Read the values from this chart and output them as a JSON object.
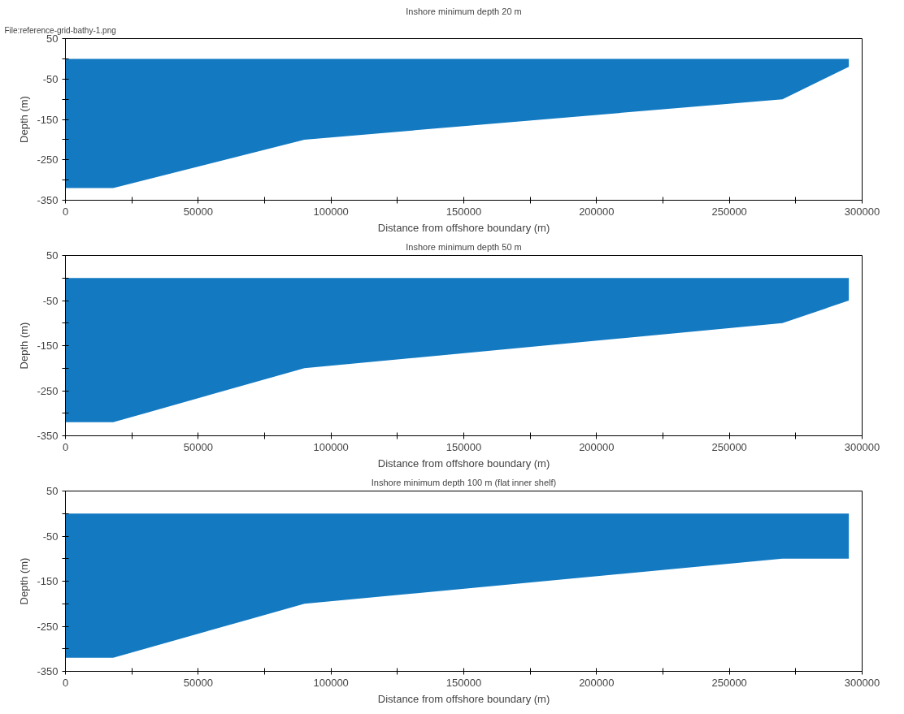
{
  "chart_data": [
    {
      "type": "area",
      "title": "Inshore minimum depth 20 m",
      "xlabel": "Distance from offshore boundary (m)",
      "ylabel": "Depth (m)",
      "annotations": [
        "File:reference-grid-bathy-1.png"
      ],
      "x": [
        0,
        18000,
        90000,
        270000,
        295000
      ],
      "series": [
        {
          "color": "#137ac2",
          "values": [
            -320,
            -320,
            -200,
            -100,
            -20
          ]
        }
      ],
      "xlim": [
        0,
        300000
      ],
      "ylim": [
        -350,
        50
      ],
      "xticks": [
        0,
        {
          "value": 25000,
          "label": null
        },
        50000,
        {
          "value": 75000,
          "label": null
        },
        100000,
        {
          "value": 125000,
          "label": null
        },
        150000,
        {
          "value": 175000,
          "label": null
        },
        200000,
        {
          "value": 225000,
          "label": null
        },
        250000,
        {
          "value": 275000,
          "label": null
        },
        300000
      ],
      "yticks": [
        50,
        {
          "value": 0,
          "label": null
        },
        -50,
        {
          "value": -100,
          "label": null
        },
        -150,
        {
          "value": -200,
          "label": null
        },
        -250,
        {
          "value": -300,
          "label": null
        },
        -350
      ],
      "grid": false
    },
    {
      "type": "area",
      "title": "Inshore minimum depth 50 m",
      "xlabel": "Distance from offshore boundary (m)",
      "ylabel": "Depth (m)",
      "x": [
        0,
        18000,
        90000,
        270000,
        295000
      ],
      "series": [
        {
          "color": "#137ac2",
          "values": [
            -320,
            -320,
            -200,
            -100,
            -50
          ]
        }
      ],
      "xlim": [
        0,
        300000
      ],
      "ylim": [
        -350,
        50
      ],
      "xticks": [
        0,
        {
          "value": 25000,
          "label": null
        },
        50000,
        {
          "value": 75000,
          "label": null
        },
        100000,
        {
          "value": 125000,
          "label": null
        },
        150000,
        {
          "value": 175000,
          "label": null
        },
        200000,
        {
          "value": 225000,
          "label": null
        },
        250000,
        {
          "value": 275000,
          "label": null
        },
        300000
      ],
      "yticks": [
        50,
        {
          "value": 0,
          "label": null
        },
        -50,
        {
          "value": -100,
          "label": null
        },
        -150,
        {
          "value": -200,
          "label": null
        },
        -250,
        {
          "value": -300,
          "label": null
        },
        -350
      ],
      "grid": false
    },
    {
      "type": "area",
      "title": "Inshore minimum depth 100 m (flat inner shelf)",
      "xlabel": "Distance from offshore boundary (m)",
      "ylabel": "Depth (m)",
      "x": [
        0,
        18000,
        90000,
        270000,
        295000
      ],
      "series": [
        {
          "color": "#137ac2",
          "values": [
            -320,
            -320,
            -200,
            -100,
            -100
          ]
        }
      ],
      "xlim": [
        0,
        300000
      ],
      "ylim": [
        -350,
        50
      ],
      "xticks": [
        0,
        {
          "value": 25000,
          "label": null
        },
        50000,
        {
          "value": 75000,
          "label": null
        },
        100000,
        {
          "value": 125000,
          "label": null
        },
        150000,
        {
          "value": 175000,
          "label": null
        },
        200000,
        {
          "value": 225000,
          "label": null
        },
        250000,
        {
          "value": 275000,
          "label": null
        },
        300000
      ],
      "yticks": [
        50,
        {
          "value": 0,
          "label": null
        },
        -50,
        {
          "value": -100,
          "label": null
        },
        -150,
        {
          "value": -200,
          "label": null
        },
        -250,
        {
          "value": -300,
          "label": null
        },
        -350
      ],
      "grid": false
    }
  ]
}
